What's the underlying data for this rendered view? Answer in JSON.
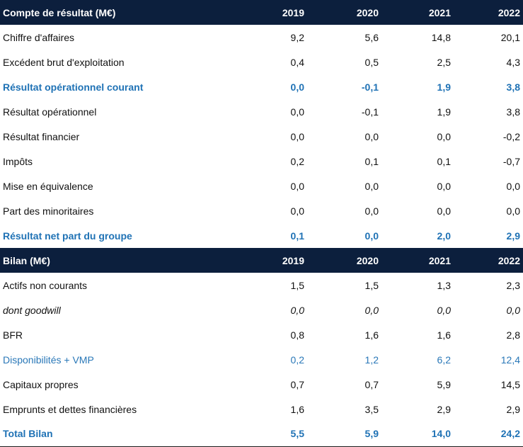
{
  "sections": [
    {
      "title": "Compte de résultat (M€)",
      "years": [
        "2019",
        "2020",
        "2021",
        "2022"
      ],
      "rows": [
        {
          "label": "Chiffre d'affaires",
          "values": [
            "9,2",
            "5,6",
            "14,8",
            "20,1"
          ],
          "style": "normal"
        },
        {
          "label": "Excédent brut d'exploitation",
          "values": [
            "0,4",
            "0,5",
            "2,5",
            "4,3"
          ],
          "style": "normal"
        },
        {
          "label": "Résultat opérationnel courant",
          "values": [
            "0,0",
            "-0,1",
            "1,9",
            "3,8"
          ],
          "style": "highlight"
        },
        {
          "label": "Résultat opérationnel",
          "values": [
            "0,0",
            "-0,1",
            "1,9",
            "3,8"
          ],
          "style": "normal"
        },
        {
          "label": "Résultat financier",
          "values": [
            "0,0",
            "0,0",
            "0,0",
            "-0,2"
          ],
          "style": "normal"
        },
        {
          "label": "Impôts",
          "values": [
            "0,2",
            "0,1",
            "0,1",
            "-0,7"
          ],
          "style": "normal"
        },
        {
          "label": "Mise en équivalence",
          "values": [
            "0,0",
            "0,0",
            "0,0",
            "0,0"
          ],
          "style": "normal"
        },
        {
          "label": "Part des minoritaires",
          "values": [
            "0,0",
            "0,0",
            "0,0",
            "0,0"
          ],
          "style": "normal"
        },
        {
          "label": "Résultat net part du groupe",
          "values": [
            "0,1",
            "0,0",
            "2,0",
            "2,9"
          ],
          "style": "highlight"
        }
      ]
    },
    {
      "title": "Bilan (M€)",
      "years": [
        "2019",
        "2020",
        "2021",
        "2022"
      ],
      "rows": [
        {
          "label": "Actifs non courants",
          "values": [
            "1,5",
            "1,5",
            "1,3",
            "2,3"
          ],
          "style": "normal"
        },
        {
          "label": "dont goodwill",
          "values": [
            "0,0",
            "0,0",
            "0,0",
            "0,0"
          ],
          "style": "italic"
        },
        {
          "label": "BFR",
          "values": [
            "0,8",
            "1,6",
            "1,6",
            "2,8"
          ],
          "style": "normal"
        },
        {
          "label": "Disponibilités + VMP",
          "values": [
            "0,2",
            "1,2",
            "6,2",
            "12,4"
          ],
          "style": "blue"
        },
        {
          "label": "Capitaux propres",
          "values": [
            "0,7",
            "0,7",
            "5,9",
            "14,5"
          ],
          "style": "normal"
        },
        {
          "label": "Emprunts et dettes financières",
          "values": [
            "1,6",
            "3,5",
            "2,9",
            "2,9"
          ],
          "style": "normal"
        },
        {
          "label": "Total Bilan",
          "values": [
            "5,5",
            "5,9",
            "14,0",
            "24,2"
          ],
          "style": "highlight last"
        }
      ]
    }
  ],
  "colors": {
    "header_bg": "#0c1f3d",
    "header_text": "#ffffff",
    "highlight": "#1f72b5",
    "blue": "#2a78b8"
  }
}
